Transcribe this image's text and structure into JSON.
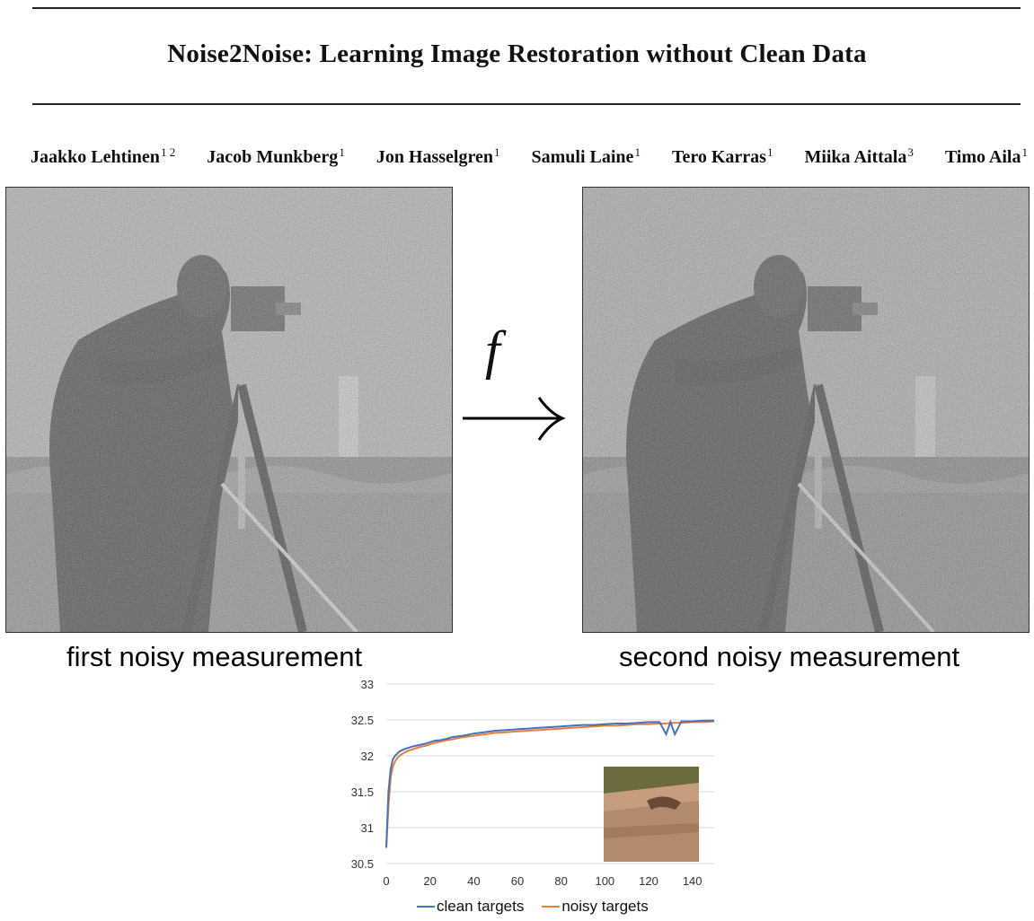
{
  "title": "Noise2Noise: Learning Image Restoration without Clean Data",
  "authors": [
    {
      "name": "Jaakko Lehtinen",
      "sup": "1 2"
    },
    {
      "name": "Jacob Munkberg",
      "sup": "1"
    },
    {
      "name": "Jon Hasselgren",
      "sup": "1"
    },
    {
      "name": "Samuli Laine",
      "sup": "1"
    },
    {
      "name": "Tero Karras",
      "sup": "1"
    },
    {
      "name": "Miika Aittala",
      "sup": "3"
    },
    {
      "name": "Timo Aila",
      "sup": "1"
    }
  ],
  "figure": {
    "arrow_label": "f",
    "left_caption": "first noisy measurement",
    "right_caption": "second noisy measurement"
  },
  "chart_data": {
    "type": "line",
    "x": [
      0,
      1,
      2,
      3,
      4,
      5,
      6,
      8,
      10,
      12,
      15,
      18,
      20,
      22,
      25,
      28,
      30,
      35,
      40,
      45,
      50,
      55,
      60,
      65,
      70,
      75,
      80,
      85,
      90,
      95,
      100,
      105,
      110,
      115,
      120,
      125,
      128,
      130,
      132,
      135,
      140,
      145,
      150
    ],
    "series": [
      {
        "name": "clean targets",
        "color": "#4472c4",
        "values": [
          30.72,
          31.5,
          31.82,
          31.95,
          32.0,
          32.03,
          32.06,
          32.09,
          32.11,
          32.13,
          32.15,
          32.17,
          32.19,
          32.21,
          32.22,
          32.24,
          32.26,
          32.28,
          32.31,
          32.33,
          32.35,
          32.36,
          32.37,
          32.38,
          32.39,
          32.4,
          32.41,
          32.42,
          32.43,
          32.43,
          32.44,
          32.45,
          32.45,
          32.46,
          32.47,
          32.47,
          32.3,
          32.47,
          32.3,
          32.48,
          32.48,
          32.49,
          32.49
        ]
      },
      {
        "name": "noisy targets",
        "color": "#ed7d31",
        "values": [
          30.72,
          31.3,
          31.7,
          31.85,
          31.92,
          31.97,
          32.0,
          32.04,
          32.07,
          32.09,
          32.12,
          32.14,
          32.16,
          32.18,
          32.2,
          32.22,
          32.23,
          32.26,
          32.28,
          32.3,
          32.32,
          32.33,
          32.34,
          32.35,
          32.36,
          32.37,
          32.38,
          32.39,
          32.4,
          32.41,
          32.42,
          32.42,
          32.43,
          32.44,
          32.44,
          32.45,
          32.45,
          32.46,
          32.46,
          32.46,
          32.47,
          32.47,
          32.48
        ]
      }
    ],
    "xticks": [
      "0",
      "20",
      "40",
      "60",
      "80",
      "100",
      "120",
      "140"
    ],
    "yticks": [
      "30.5",
      "31",
      "31.5",
      "32",
      "32.5",
      "33"
    ],
    "xlim": [
      0,
      150
    ],
    "ylim": [
      30.5,
      33
    ],
    "grid": "horizontal",
    "legend": "bottom"
  }
}
